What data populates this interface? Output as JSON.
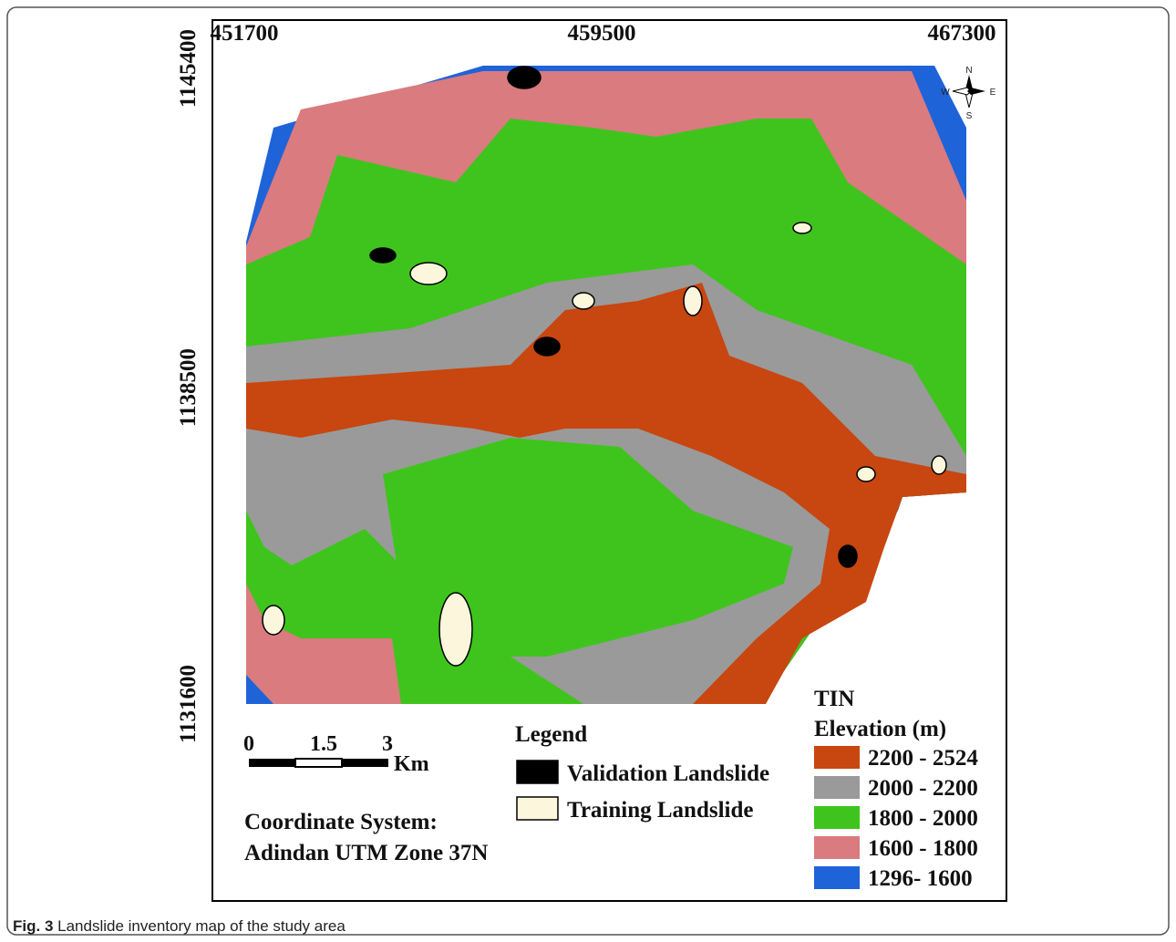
{
  "map": {
    "x_ticks": [
      451700,
      459500,
      467300
    ],
    "y_ticks": [
      1145400,
      1138500,
      1131600
    ],
    "north_arrow": {
      "n": "N",
      "s": "S",
      "w": "W",
      "e": "E"
    },
    "scale_bar": {
      "labels": [
        "0",
        "1.5",
        "3"
      ],
      "unit": "Km"
    },
    "coordinate_system": [
      "Coordinate System:",
      "Adindan UTM Zone 37N"
    ],
    "legend": {
      "title": "Legend",
      "items": [
        {
          "label": "Validation Landslide",
          "color": "#000000"
        },
        {
          "label": "Training Landslide",
          "color": "#fbf6dc"
        }
      ]
    },
    "elevation": {
      "title": [
        "TIN",
        "Elevation (m)"
      ],
      "classes": [
        {
          "label": "2200 - 2524",
          "color": "#c8460f"
        },
        {
          "label": "2000 - 2200",
          "color": "#9a9a9a"
        },
        {
          "label": "1800 - 2000",
          "color": "#3fc41d"
        },
        {
          "label": "1600 - 1800",
          "color": "#d97b7f"
        },
        {
          "label": "1296- 1600",
          "color": "#1f63d8"
        }
      ]
    }
  },
  "caption": {
    "label": "Fig. 3",
    "text": "Landslide inventory map of the study area"
  }
}
